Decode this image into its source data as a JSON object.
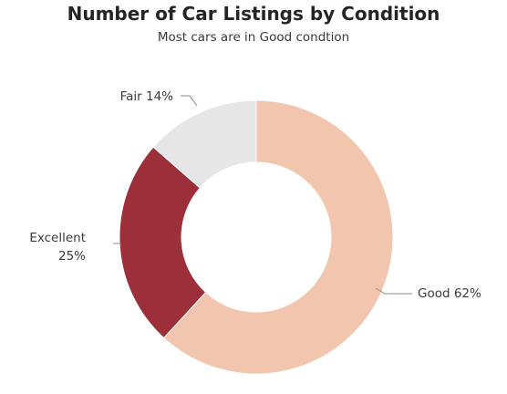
{
  "chart_data": {
    "type": "pie",
    "title": "Number of Car Listings by Condition",
    "subtitle": "Most cars are in Good condtion",
    "slices": [
      {
        "label": "Good",
        "percent_label": "62%",
        "value": 62,
        "color": "#F2C6AE"
      },
      {
        "label": "Excellent",
        "percent_label": "25%",
        "value": 24.7,
        "color": "#9C2F39"
      },
      {
        "label": "Fair",
        "percent_label": "14%",
        "value": 13.6,
        "color": "#E6E6E6"
      }
    ]
  }
}
